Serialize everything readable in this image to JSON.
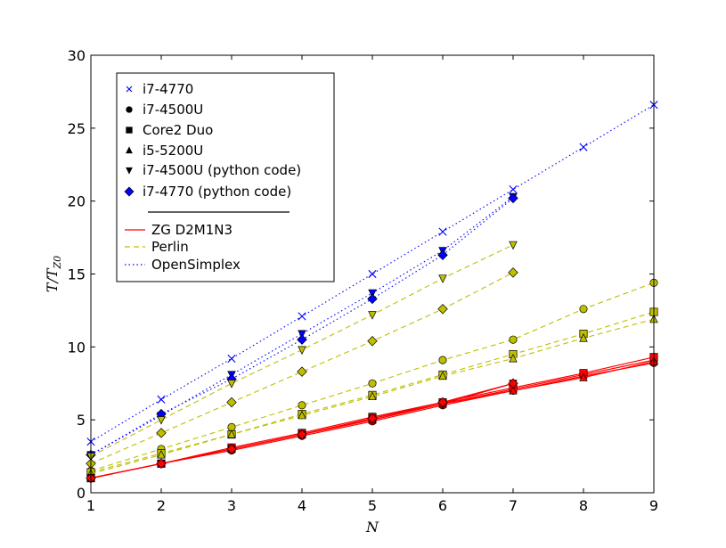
{
  "chart_data": {
    "type": "line",
    "xlabel": "N",
    "ylabel": "T/T_Z0",
    "ylabel_main": "T/T",
    "ylabel_sub": "Z0",
    "xlim": [
      1,
      9
    ],
    "ylim": [
      0,
      30
    ],
    "x_ticks": [
      "1",
      "2",
      "3",
      "4",
      "5",
      "6",
      "7",
      "8",
      "9"
    ],
    "y_ticks": [
      "0",
      "5",
      "10",
      "15",
      "20",
      "25",
      "30"
    ],
    "grid": false,
    "legend_placement": "upper-left",
    "legend_markers": [
      {
        "label": "i7-4770",
        "marker": "x"
      },
      {
        "label": "i7-4500U",
        "marker": "circle"
      },
      {
        "label": "Core2 Duo",
        "marker": "square"
      },
      {
        "label": "i5-5200U",
        "marker": "triangle-up"
      },
      {
        "label": "i7-4500U (python code)",
        "marker": "triangle-down"
      },
      {
        "label": "i7-4770 (python code)",
        "marker": "diamond"
      }
    ],
    "legend_lines": [
      {
        "label": "ZG D2M1N3",
        "color": "#ff0000",
        "dash": "solid"
      },
      {
        "label": "Perlin",
        "color": "#bfbf00",
        "dash": "dashed"
      },
      {
        "label": "OpenSimplex",
        "color": "#0000ff",
        "dash": "dotted"
      }
    ],
    "series": [
      {
        "algorithm": "OpenSimplex",
        "machine": "i7-4770",
        "color": "#0000ff",
        "dash": "dotted",
        "marker": "x",
        "x": [
          1,
          2,
          3,
          4,
          5,
          6,
          7,
          8,
          9
        ],
        "y": [
          3.5,
          6.4,
          9.2,
          12.1,
          15.0,
          17.9,
          20.8,
          23.7,
          26.6
        ]
      },
      {
        "algorithm": "OpenSimplex",
        "machine": "i7-4500U (python code)",
        "color": "#0000ff",
        "dash": "dotted",
        "marker": "triangle-down",
        "x": [
          1,
          2,
          3,
          4,
          5,
          6,
          7
        ],
        "y": [
          2.6,
          5.3,
          8.1,
          10.9,
          13.7,
          16.6,
          20.3
        ]
      },
      {
        "algorithm": "OpenSimplex",
        "machine": "i7-4770 (python code)",
        "color": "#0000ff",
        "dash": "dotted",
        "marker": "diamond",
        "x": [
          1,
          2,
          3,
          4,
          5,
          6,
          7
        ],
        "y": [
          2.6,
          5.4,
          7.8,
          10.5,
          13.3,
          16.3,
          20.2
        ]
      },
      {
        "algorithm": "Perlin",
        "machine": "i7-4500U (python code)",
        "color": "#bfbf00",
        "dash": "dashed",
        "marker": "triangle-down",
        "x": [
          1,
          2,
          3,
          4,
          5,
          6,
          7
        ],
        "y": [
          2.5,
          5.0,
          7.5,
          9.8,
          12.2,
          14.7,
          17.0
        ]
      },
      {
        "algorithm": "Perlin",
        "machine": "i7-4770 (python code)",
        "color": "#bfbf00",
        "dash": "dashed",
        "marker": "diamond",
        "x": [
          1,
          2,
          3,
          4,
          5,
          6,
          7
        ],
        "y": [
          2.0,
          4.1,
          6.2,
          8.3,
          10.4,
          12.6,
          15.1
        ]
      },
      {
        "algorithm": "Perlin",
        "machine": "i7-4500U",
        "color": "#bfbf00",
        "dash": "dashed",
        "marker": "circle",
        "x": [
          1,
          2,
          3,
          4,
          5,
          6,
          7,
          8,
          9
        ],
        "y": [
          1.5,
          3.0,
          4.5,
          6.0,
          7.5,
          9.1,
          10.5,
          12.6,
          14.4
        ]
      },
      {
        "algorithm": "Perlin",
        "machine": "Core2 Duo",
        "color": "#bfbf00",
        "dash": "dashed",
        "marker": "square",
        "x": [
          1,
          2,
          3,
          4,
          5,
          6,
          7,
          8,
          9
        ],
        "y": [
          1.4,
          2.7,
          4.0,
          5.4,
          6.7,
          8.1,
          9.5,
          10.9,
          12.4
        ]
      },
      {
        "algorithm": "Perlin",
        "machine": "i5-5200U",
        "color": "#bfbf00",
        "dash": "dashed",
        "marker": "triangle-up",
        "x": [
          1,
          2,
          3,
          4,
          5,
          6,
          7,
          8,
          9
        ],
        "y": [
          1.3,
          2.6,
          4.0,
          5.3,
          6.6,
          8.0,
          9.2,
          10.6,
          11.9
        ]
      },
      {
        "algorithm": "ZG D2M1N3",
        "machine": "i7-4770",
        "color": "#ff0000",
        "dash": "solid",
        "marker": "x",
        "x": [
          1,
          2,
          3,
          4,
          5,
          6,
          7,
          8,
          9
        ],
        "y": [
          1.0,
          2.0,
          3.0,
          4.0,
          5.0,
          6.1,
          7.1,
          8.1,
          9.1
        ]
      },
      {
        "algorithm": "ZG D2M1N3",
        "machine": "i7-4500U",
        "color": "#ff0000",
        "dash": "solid",
        "marker": "circle",
        "x": [
          1,
          2,
          3,
          4,
          5,
          6,
          7,
          8,
          9
        ],
        "y": [
          1.0,
          2.0,
          2.9,
          3.9,
          4.9,
          6.0,
          7.0,
          8.0,
          8.9
        ]
      },
      {
        "algorithm": "ZG D2M1N3",
        "machine": "Core2 Duo",
        "color": "#ff0000",
        "dash": "solid",
        "marker": "square",
        "x": [
          1,
          2,
          3,
          4,
          5,
          6,
          7,
          8,
          9
        ],
        "y": [
          1.0,
          2.0,
          3.1,
          4.1,
          5.2,
          6.2,
          7.2,
          8.2,
          9.3
        ]
      },
      {
        "algorithm": "ZG D2M1N3",
        "machine": "i5-5200U",
        "color": "#ff0000",
        "dash": "solid",
        "marker": "triangle-up",
        "x": [
          1,
          2,
          3,
          4,
          5,
          6,
          7,
          8,
          9
        ],
        "y": [
          1.0,
          2.0,
          3.0,
          4.0,
          5.0,
          6.1,
          7.0,
          7.9,
          9.0
        ]
      },
      {
        "algorithm": "ZG D2M1N3",
        "machine": "i7-4500U (python code)",
        "color": "#ff0000",
        "dash": "solid",
        "marker": "triangle-down",
        "x": [
          1,
          2,
          3,
          4,
          5,
          6,
          7
        ],
        "y": [
          1.0,
          2.0,
          3.0,
          4.0,
          5.1,
          6.1,
          7.5
        ]
      },
      {
        "algorithm": "ZG D2M1N3",
        "machine": "i7-4770 (python code)",
        "color": "#ff0000",
        "dash": "solid",
        "marker": "diamond",
        "x": [
          1,
          2,
          3,
          4,
          5,
          6,
          7
        ],
        "y": [
          1.0,
          2.0,
          3.0,
          4.0,
          5.1,
          6.2,
          7.5
        ]
      }
    ]
  }
}
